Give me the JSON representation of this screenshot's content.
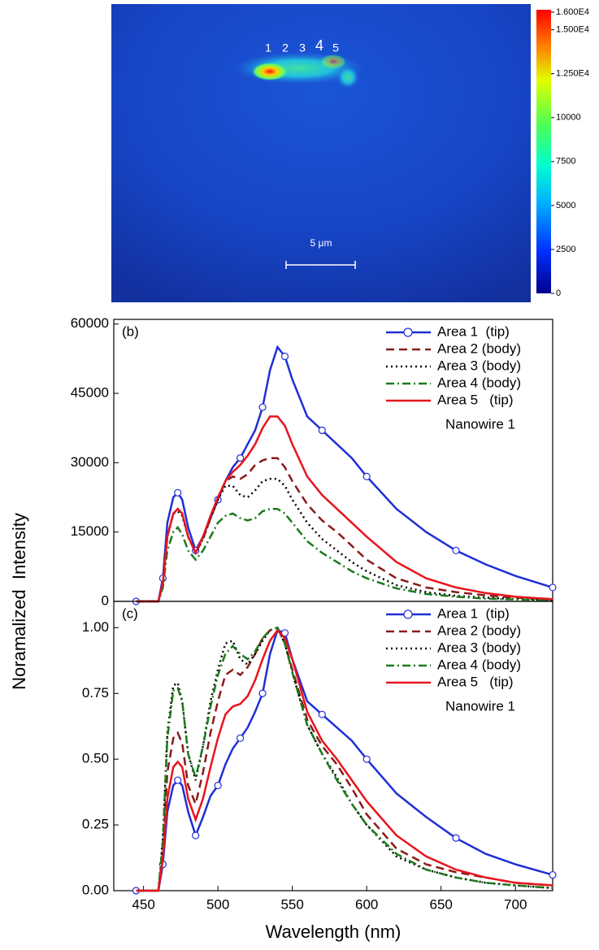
{
  "image": {
    "clim": [
      0,
      16000
    ],
    "colorbar_ticks": [
      {
        "value": 16000,
        "label": "1.600E4"
      },
      {
        "value": 15000,
        "label": "1.500E4"
      },
      {
        "value": 12500,
        "label": "1.250E4"
      },
      10000,
      7500,
      5000,
      2500,
      0
    ],
    "spot_labels": [
      "1",
      "2",
      "3",
      "4",
      "5"
    ],
    "scale_bar": "5 μm"
  },
  "x_axis_label": "Wavelength (nm)",
  "y_axis_label": "Noramalized  Intensity",
  "chart_data": [
    {
      "type": "line",
      "panel": "(b)",
      "annotation": "Nanowire 1",
      "x": [
        445,
        455,
        460,
        463,
        466,
        470,
        473,
        476,
        480,
        485,
        490,
        495,
        500,
        505,
        510,
        515,
        520,
        525,
        530,
        535,
        540,
        545,
        550,
        560,
        570,
        580,
        590,
        600,
        620,
        640,
        660,
        680,
        700,
        725
      ],
      "xlim": [
        430,
        725
      ],
      "ylim": [
        0,
        61000
      ],
      "yticks": [
        0,
        15000,
        30000,
        45000,
        60000
      ],
      "series": [
        {
          "name": "Area 1  (tip)",
          "color": "#1f2fd6",
          "dash": "solid",
          "marker": "circle",
          "values": [
            0,
            0,
            0,
            5000,
            17000,
            22500,
            23500,
            22000,
            16000,
            11000,
            14000,
            18000,
            22000,
            26000,
            29000,
            31000,
            34000,
            37000,
            42000,
            50000,
            55000,
            53000,
            48000,
            40000,
            37000,
            34000,
            31000,
            27000,
            20000,
            15000,
            11000,
            8000,
            5500,
            3000
          ]
        },
        {
          "name": "Area 2 (body)",
          "color": "#8b1a1a",
          "dash": "dashed",
          "values": [
            0,
            0,
            0,
            4000,
            14000,
            19000,
            20000,
            19000,
            14000,
            10500,
            13500,
            18000,
            22000,
            26000,
            27000,
            26500,
            27500,
            29500,
            30500,
            31000,
            31000,
            29000,
            26000,
            21000,
            17500,
            15000,
            12000,
            9000,
            5000,
            3000,
            2000,
            1300,
            800,
            400
          ]
        },
        {
          "name": "Area 3 (body)",
          "color": "#000000",
          "dash": "dotted",
          "values": [
            0,
            0,
            0,
            4000,
            14000,
            19000,
            19500,
            18500,
            14000,
            10500,
            13500,
            18000,
            22000,
            25000,
            25000,
            23000,
            22500,
            24000,
            26000,
            26500,
            26500,
            25000,
            22000,
            17000,
            13500,
            11000,
            8500,
            6500,
            3500,
            2000,
            1200,
            800,
            500,
            300
          ]
        },
        {
          "name": "Area 4 (body)",
          "color": "#1a7a1a",
          "dash": "dashdot",
          "values": [
            0,
            0,
            0,
            3000,
            11000,
            15000,
            16000,
            14500,
            11000,
            9000,
            11000,
            14000,
            17000,
            18500,
            19000,
            18000,
            17500,
            18000,
            19500,
            20000,
            20000,
            19000,
            17000,
            13000,
            10500,
            8500,
            6500,
            5000,
            2800,
            1600,
            1000,
            600,
            400,
            200
          ]
        },
        {
          "name": "Area 5   (tip)",
          "color": "#e8141c",
          "dash": "solid",
          "values": [
            0,
            0,
            0,
            4000,
            14000,
            19000,
            20000,
            19000,
            14000,
            10500,
            14000,
            18500,
            22500,
            26000,
            28000,
            29500,
            31500,
            34000,
            37500,
            40000,
            40000,
            38000,
            34000,
            27000,
            23000,
            20000,
            17000,
            14000,
            8500,
            5000,
            3000,
            1800,
            1000,
            500
          ]
        }
      ]
    },
    {
      "type": "line",
      "panel": "(c)",
      "annotation": "Nanowire 1",
      "x": [
        445,
        455,
        460,
        463,
        466,
        470,
        473,
        476,
        480,
        485,
        490,
        495,
        500,
        505,
        510,
        515,
        520,
        525,
        530,
        535,
        540,
        545,
        550,
        560,
        570,
        580,
        590,
        600,
        620,
        640,
        660,
        680,
        700,
        725
      ],
      "xlim": [
        430,
        725
      ],
      "xticks": [
        450,
        500,
        550,
        600,
        650,
        700
      ],
      "ylim": [
        0,
        1.1
      ],
      "yticks": [
        {
          "value": 0,
          "label": "0.00"
        },
        {
          "value": 0.25,
          "label": "0.25"
        },
        {
          "value": 0.5,
          "label": "0.50"
        },
        {
          "value": 0.75,
          "label": "0.75"
        },
        {
          "value": 1,
          "label": "1.00"
        }
      ],
      "series": [
        {
          "name": "Area 1  (tip)",
          "color": "#1f2fd6",
          "dash": "solid",
          "marker": "circle",
          "values": [
            0,
            0,
            0,
            0.1,
            0.3,
            0.4,
            0.42,
            0.4,
            0.3,
            0.21,
            0.28,
            0.36,
            0.4,
            0.48,
            0.54,
            0.58,
            0.62,
            0.68,
            0.75,
            0.9,
            0.99,
            0.98,
            0.88,
            0.72,
            0.67,
            0.62,
            0.57,
            0.5,
            0.37,
            0.28,
            0.2,
            0.14,
            0.1,
            0.06
          ]
        },
        {
          "name": "Area 2 (body)",
          "color": "#8b1a1a",
          "dash": "dashed",
          "values": [
            0,
            0,
            0,
            0.15,
            0.45,
            0.58,
            0.6,
            0.56,
            0.4,
            0.33,
            0.45,
            0.6,
            0.72,
            0.82,
            0.84,
            0.82,
            0.85,
            0.9,
            0.96,
            0.99,
            1,
            0.94,
            0.84,
            0.65,
            0.55,
            0.48,
            0.39,
            0.29,
            0.16,
            0.1,
            0.07,
            0.05,
            0.03,
            0.02
          ]
        },
        {
          "name": "Area 3 (body)",
          "color": "#000000",
          "dash": "dotted",
          "values": [
            0,
            0,
            0,
            0.2,
            0.6,
            0.78,
            0.79,
            0.72,
            0.52,
            0.42,
            0.55,
            0.72,
            0.84,
            0.94,
            0.95,
            0.88,
            0.86,
            0.9,
            0.95,
            0.99,
            1,
            0.94,
            0.83,
            0.63,
            0.52,
            0.43,
            0.33,
            0.25,
            0.13,
            0.08,
            0.05,
            0.03,
            0.02,
            0.01
          ]
        },
        {
          "name": "Area 4 (body)",
          "color": "#1a7a1a",
          "dash": "dashdot",
          "values": [
            0,
            0,
            0,
            0.19,
            0.58,
            0.76,
            0.77,
            0.72,
            0.52,
            0.43,
            0.55,
            0.7,
            0.82,
            0.9,
            0.93,
            0.9,
            0.88,
            0.91,
            0.96,
            0.99,
            1,
            0.94,
            0.83,
            0.63,
            0.52,
            0.42,
            0.33,
            0.25,
            0.14,
            0.08,
            0.05,
            0.03,
            0.02,
            0.01
          ]
        },
        {
          "name": "Area 5   (tip)",
          "color": "#e8141c",
          "dash": "solid",
          "values": [
            0,
            0,
            0,
            0.12,
            0.35,
            0.47,
            0.49,
            0.47,
            0.35,
            0.27,
            0.35,
            0.47,
            0.58,
            0.67,
            0.7,
            0.71,
            0.74,
            0.8,
            0.88,
            0.95,
            0.99,
            0.96,
            0.88,
            0.68,
            0.57,
            0.5,
            0.42,
            0.34,
            0.21,
            0.13,
            0.08,
            0.05,
            0.03,
            0.02
          ]
        }
      ]
    }
  ]
}
